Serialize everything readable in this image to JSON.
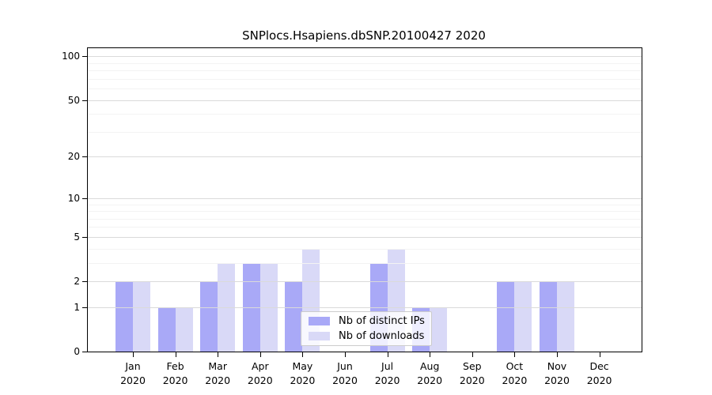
{
  "title": "SNPlocs.Hsapiens.dbSNP.20100427 2020",
  "colors": {
    "distinct_ips": "#a9a9f7",
    "downloads": "#d9d9f7",
    "grid_major": "#dadada",
    "grid_minor": "#f3f3f3",
    "axis": "#000000"
  },
  "legend": {
    "items": [
      {
        "label": "Nb of distinct IPs",
        "color": "#a9a9f7"
      },
      {
        "label": "Nb of downloads",
        "color": "#d9d9f7"
      }
    ]
  },
  "chart_data": {
    "type": "bar",
    "title": "SNPlocs.Hsapiens.dbSNP.20100427 2020",
    "categories": [
      "Jan 2020",
      "Feb 2020",
      "Mar 2020",
      "Apr 2020",
      "May 2020",
      "Jun 2020",
      "Jul 2020",
      "Aug 2020",
      "Sep 2020",
      "Oct 2020",
      "Nov 2020",
      "Dec 2020"
    ],
    "month_labels": [
      "Jan",
      "Feb",
      "Mar",
      "Apr",
      "May",
      "Jun",
      "Jul",
      "Aug",
      "Sep",
      "Oct",
      "Nov",
      "Dec"
    ],
    "year_label": "2020",
    "series": [
      {
        "name": "Nb of distinct IPs",
        "color_key": "distinct_ips",
        "values": [
          2,
          1,
          2,
          3,
          2,
          0,
          3,
          1,
          0,
          2,
          2,
          0
        ]
      },
      {
        "name": "Nb of downloads",
        "color_key": "downloads",
        "values": [
          2,
          1,
          3,
          3,
          4,
          0,
          4,
          1,
          0,
          2,
          2,
          0
        ]
      }
    ],
    "yscale": "log1p",
    "ylim": [
      0,
      100
    ],
    "yticks": [
      0,
      1,
      2,
      5,
      10,
      20,
      50,
      100
    ],
    "yticks_minor": [
      3,
      4,
      6,
      7,
      8,
      9,
      30,
      40,
      60,
      70,
      80,
      90
    ],
    "grid": true,
    "legend_position": "lower-center"
  }
}
